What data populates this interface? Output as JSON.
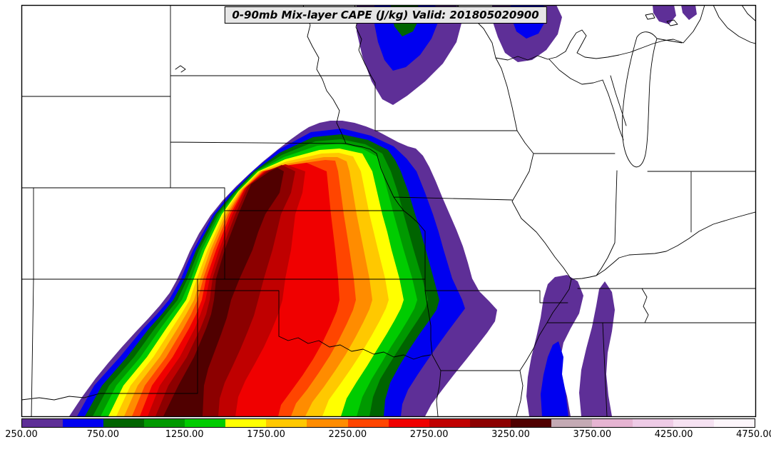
{
  "figure": {
    "title": "0-90mb Mix-layer CAPE (J/kg) Valid: 201805020900",
    "background_color": "#ffffff",
    "frame_color": "#000000",
    "state_border_color": "#000000"
  },
  "chart_data": {
    "type": "heatmap",
    "title": "0-90mb Mix-layer CAPE (J/kg) Valid: 201805020900",
    "variable": "0-90mb Mix-layer CAPE",
    "units": "J/kg",
    "valid_time": "201805020900",
    "region": "Central United States (Rockies to Ohio Valley, Canada border to Gulf states)",
    "colorbar": {
      "orientation": "horizontal",
      "position": "bottom",
      "min": 250,
      "max": 4750,
      "interval": 250,
      "tick_values": [
        250,
        750,
        1250,
        1750,
        2250,
        2750,
        3250,
        3750,
        4250,
        4750
      ],
      "tick_labels": [
        "250.00",
        "750.00",
        "1250.00",
        "1750.00",
        "2250.00",
        "2750.00",
        "3250.00",
        "3750.00",
        "4250.00",
        "4750.00"
      ],
      "colors": [
        "#5e2f97",
        "#0000f0",
        "#006400",
        "#009900",
        "#00cc00",
        "#ffff00",
        "#ffc800",
        "#ff8c00",
        "#ff4500",
        "#f00000",
        "#c00000",
        "#8c0000",
        "#500000",
        "#c4aab4",
        "#e6b4d2",
        "#eecbe6",
        "#f6e2f2",
        "#fdf6fb"
      ],
      "contour_levels_shown_on_map": [
        250,
        500,
        750,
        1000,
        1250,
        1500,
        1750,
        2000,
        2250,
        2500,
        2750,
        3000,
        3250
      ]
    },
    "features": [
      {
        "name": "primary-cape-maximum",
        "description": "Broad CAPE plume over the central/southern High Plains: Nebraska, Kansas, Oklahoma, Texas panhandle and eastern New Mexico, with tight gradient on its NW edge and broad banded gradient to the east",
        "max_value_range": "3250-3500 J/kg",
        "core_location": "western Oklahoma / Texas panhandle / southwest Kansas"
      },
      {
        "name": "mississippi-valley-band",
        "description": "Narrow 250-750 J/kg bands along the lower Mississippi valley (eastern Arkansas / western Mississippi into Louisiana)",
        "value_range": "250-750 J/kg"
      },
      {
        "name": "minnesota-patch",
        "description": "Area of 250-1000 J/kg over central Minnesota",
        "value_range": "250-1000 J/kg"
      },
      {
        "name": "upper-michigan-patch",
        "description": "Area of 250-750 J/kg over northern Wisconsin / upper Michigan",
        "value_range": "250-750 J/kg"
      },
      {
        "name": "lake-huron-corner-patches",
        "description": "Small 250-500 J/kg patches near the top-right (northern Lake Michigan / Lake Huron area)",
        "value_range": "250-500 J/kg"
      }
    ]
  }
}
